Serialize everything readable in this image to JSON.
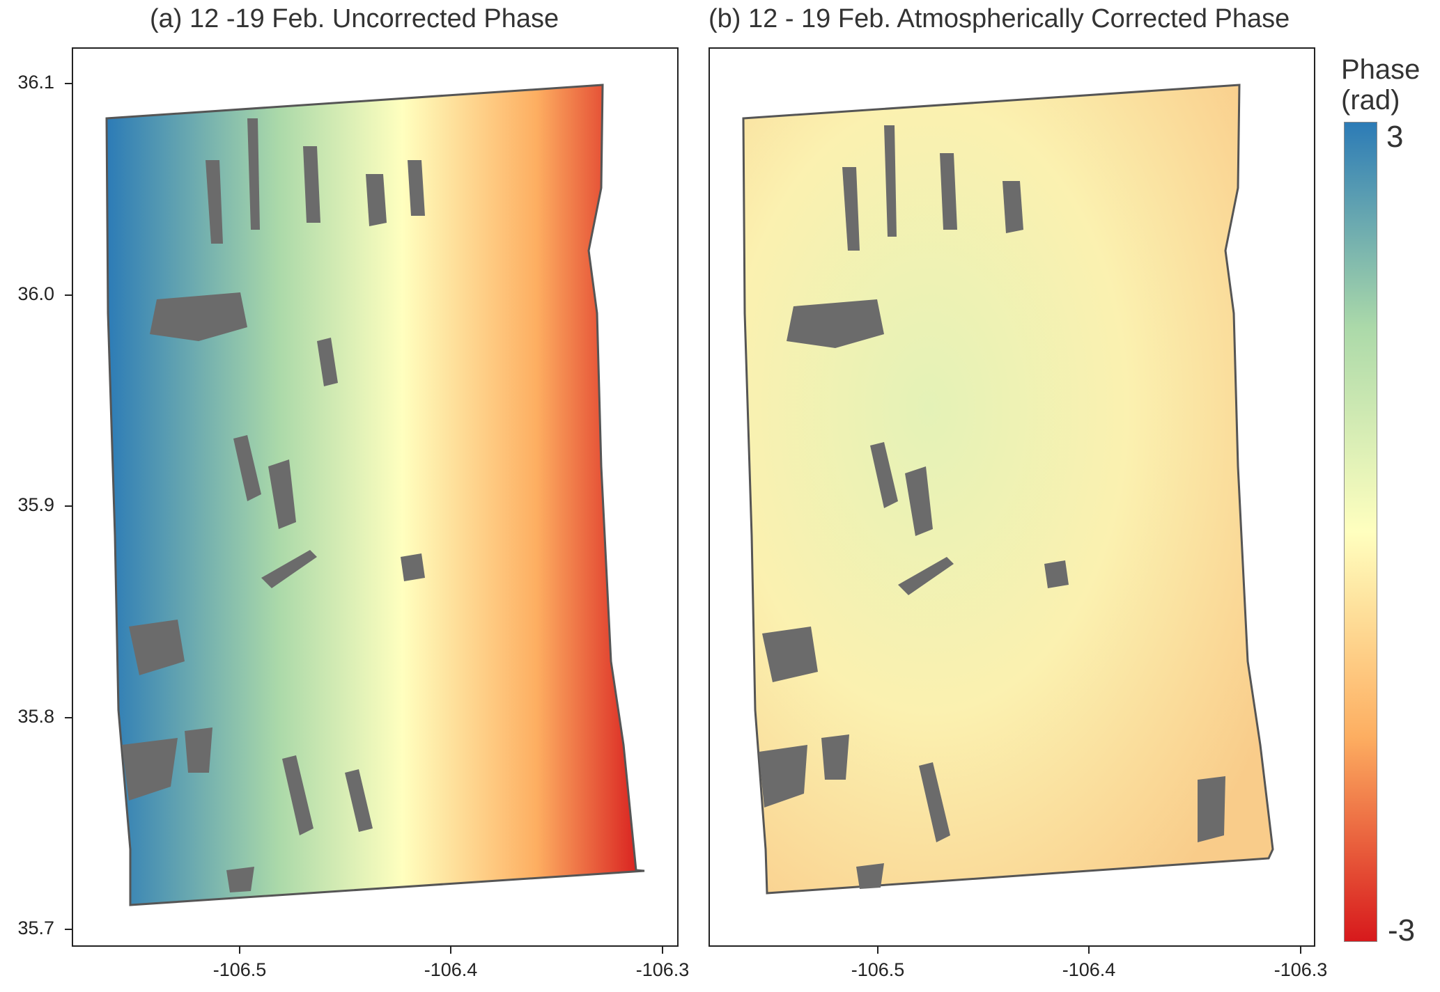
{
  "panels": [
    {
      "id": "a",
      "title": "(a) 12 -19 Feb. Uncorrected Phase"
    },
    {
      "id": "b",
      "title": "(b) 12 - 19 Feb. Atmospherically Corrected Phase"
    }
  ],
  "axes": {
    "y_ticks": [
      "36.1",
      "36.0",
      "35.9",
      "35.8",
      "35.7"
    ],
    "x_ticks": [
      "-106.5",
      "-106.4",
      "-106.3"
    ],
    "y_range": [
      35.69,
      36.13
    ],
    "x_range": [
      -106.58,
      -106.29
    ]
  },
  "colorbar": {
    "title_line1": "Phase",
    "title_line2": "(rad)",
    "max_label": "3",
    "min_label": "-3",
    "colors": [
      "#2c7bb6",
      "#abd9a9",
      "#ffffbf",
      "#fdae61",
      "#d7191c"
    ]
  },
  "mask_color": "#6b6b6b"
}
